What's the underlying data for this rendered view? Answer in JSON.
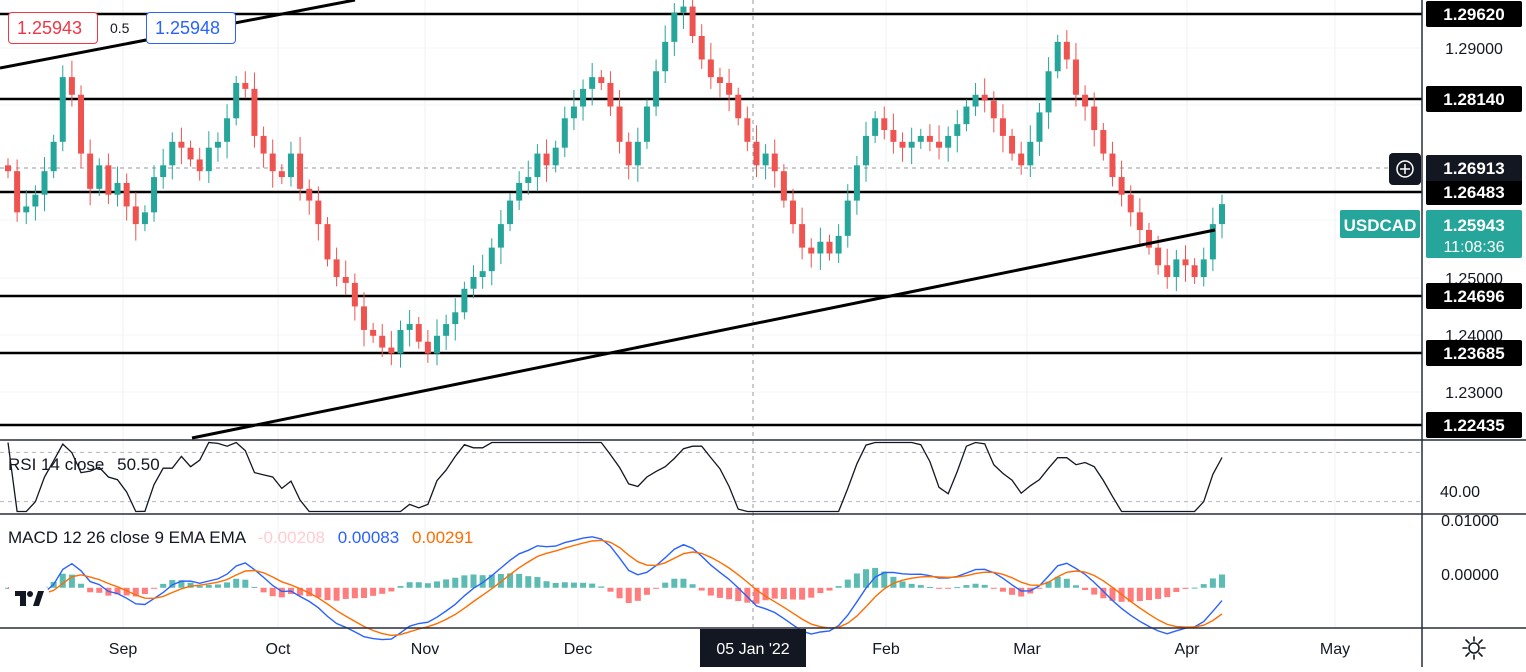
{
  "symbol": "USDCAD",
  "quote": {
    "bid": "1.25943",
    "spread": "0.5",
    "ask": "1.25948"
  },
  "price_axis": {
    "labels": [
      "1.29000",
      "1.28140",
      "1.26913",
      "1.26483",
      "1.25943",
      "1.25000",
      "1.24696",
      "1.24000",
      "1.23685",
      "1.23000",
      "1.22435",
      "1.29620"
    ],
    "countdown": "11:08:36",
    "crosshair_value": "1.26913"
  },
  "time_axis": {
    "labels": [
      "Sep",
      "Oct",
      "Nov",
      "Dec",
      "Feb",
      "Mar",
      "Apr",
      "May"
    ],
    "crosshair_label": "05 Jan '22"
  },
  "rsi": {
    "title": "RSI 14 close",
    "value": "50.50",
    "axis_label": "40.00"
  },
  "macd": {
    "title": "MACD 12 26 close 9 EMA EMA",
    "hist": "-0.00208",
    "macd": "0.00083",
    "signal": "0.00291",
    "axis_labels": [
      "0.01000",
      "0.00000"
    ]
  },
  "colors": {
    "up": "#26a69a",
    "down": "#ef5350",
    "macd_line": "#2962ff",
    "signal_line": "#ff6d00",
    "hist_up": "#26a69a",
    "hist_down": "#ff5252"
  },
  "chart_data": {
    "type": "candlestick",
    "title": "USDCAD",
    "x_range": [
      "Aug 2021",
      "May 2022"
    ],
    "ylim": [
      1.222,
      1.2965
    ],
    "horizontal_levels": [
      1.2962,
      1.2814,
      1.26483,
      1.24696,
      1.23685,
      1.22435
    ],
    "trendlines": [
      {
        "from": [
          "Aug 2021",
          1.2805
        ],
        "to": [
          "Sep 2021",
          1.295
        ]
      },
      {
        "from": [
          "Sep 2021",
          1.2225
        ],
        "to": [
          "Apr 2022",
          1.2593
        ]
      }
    ],
    "close_path": [
      1.265,
      1.258,
      1.259,
      1.261,
      1.265,
      1.27,
      1.281,
      1.278,
      1.268,
      1.262,
      1.266,
      1.261,
      1.263,
      1.259,
      1.256,
      1.258,
      1.264,
      1.266,
      1.27,
      1.269,
      1.267,
      1.265,
      1.269,
      1.27,
      1.274,
      1.28,
      1.279,
      1.271,
      1.268,
      1.265,
      1.264,
      1.268,
      1.262,
      1.26,
      1.256,
      1.25,
      1.247,
      1.246,
      1.242,
      1.238,
      1.237,
      1.235,
      1.234,
      1.238,
      1.239,
      1.236,
      1.234,
      1.237,
      1.239,
      1.241,
      1.245,
      1.247,
      1.248,
      1.252,
      1.256,
      1.26,
      1.263,
      1.264,
      1.268,
      1.266,
      1.269,
      1.274,
      1.276,
      1.279,
      1.281,
      1.28,
      1.276,
      1.27,
      1.266,
      1.27,
      1.276,
      1.282,
      1.287,
      1.292,
      1.293,
      1.288,
      1.284,
      1.281,
      1.28,
      1.278,
      1.274,
      1.27,
      1.266,
      1.268,
      1.265,
      1.26,
      1.256,
      1.252,
      1.251,
      1.253,
      1.251,
      1.254,
      1.26,
      1.266,
      1.271,
      1.274,
      1.272,
      1.27,
      1.269,
      1.27,
      1.271,
      1.27,
      1.269,
      1.271,
      1.273,
      1.276,
      1.278,
      1.277,
      1.274,
      1.271,
      1.268,
      1.266,
      1.27,
      1.275,
      1.282,
      1.287,
      1.284,
      1.278,
      1.276,
      1.272,
      1.268,
      1.264,
      1.261,
      1.258,
      1.255,
      1.252,
      1.249,
      1.247,
      1.25,
      1.249,
      1.247,
      1.25,
      1.256,
      1.2594
    ],
    "rsi_range": [
      20,
      80
    ],
    "rsi_levels": [
      70,
      30
    ],
    "macd_range": [
      -0.006,
      0.011
    ]
  }
}
